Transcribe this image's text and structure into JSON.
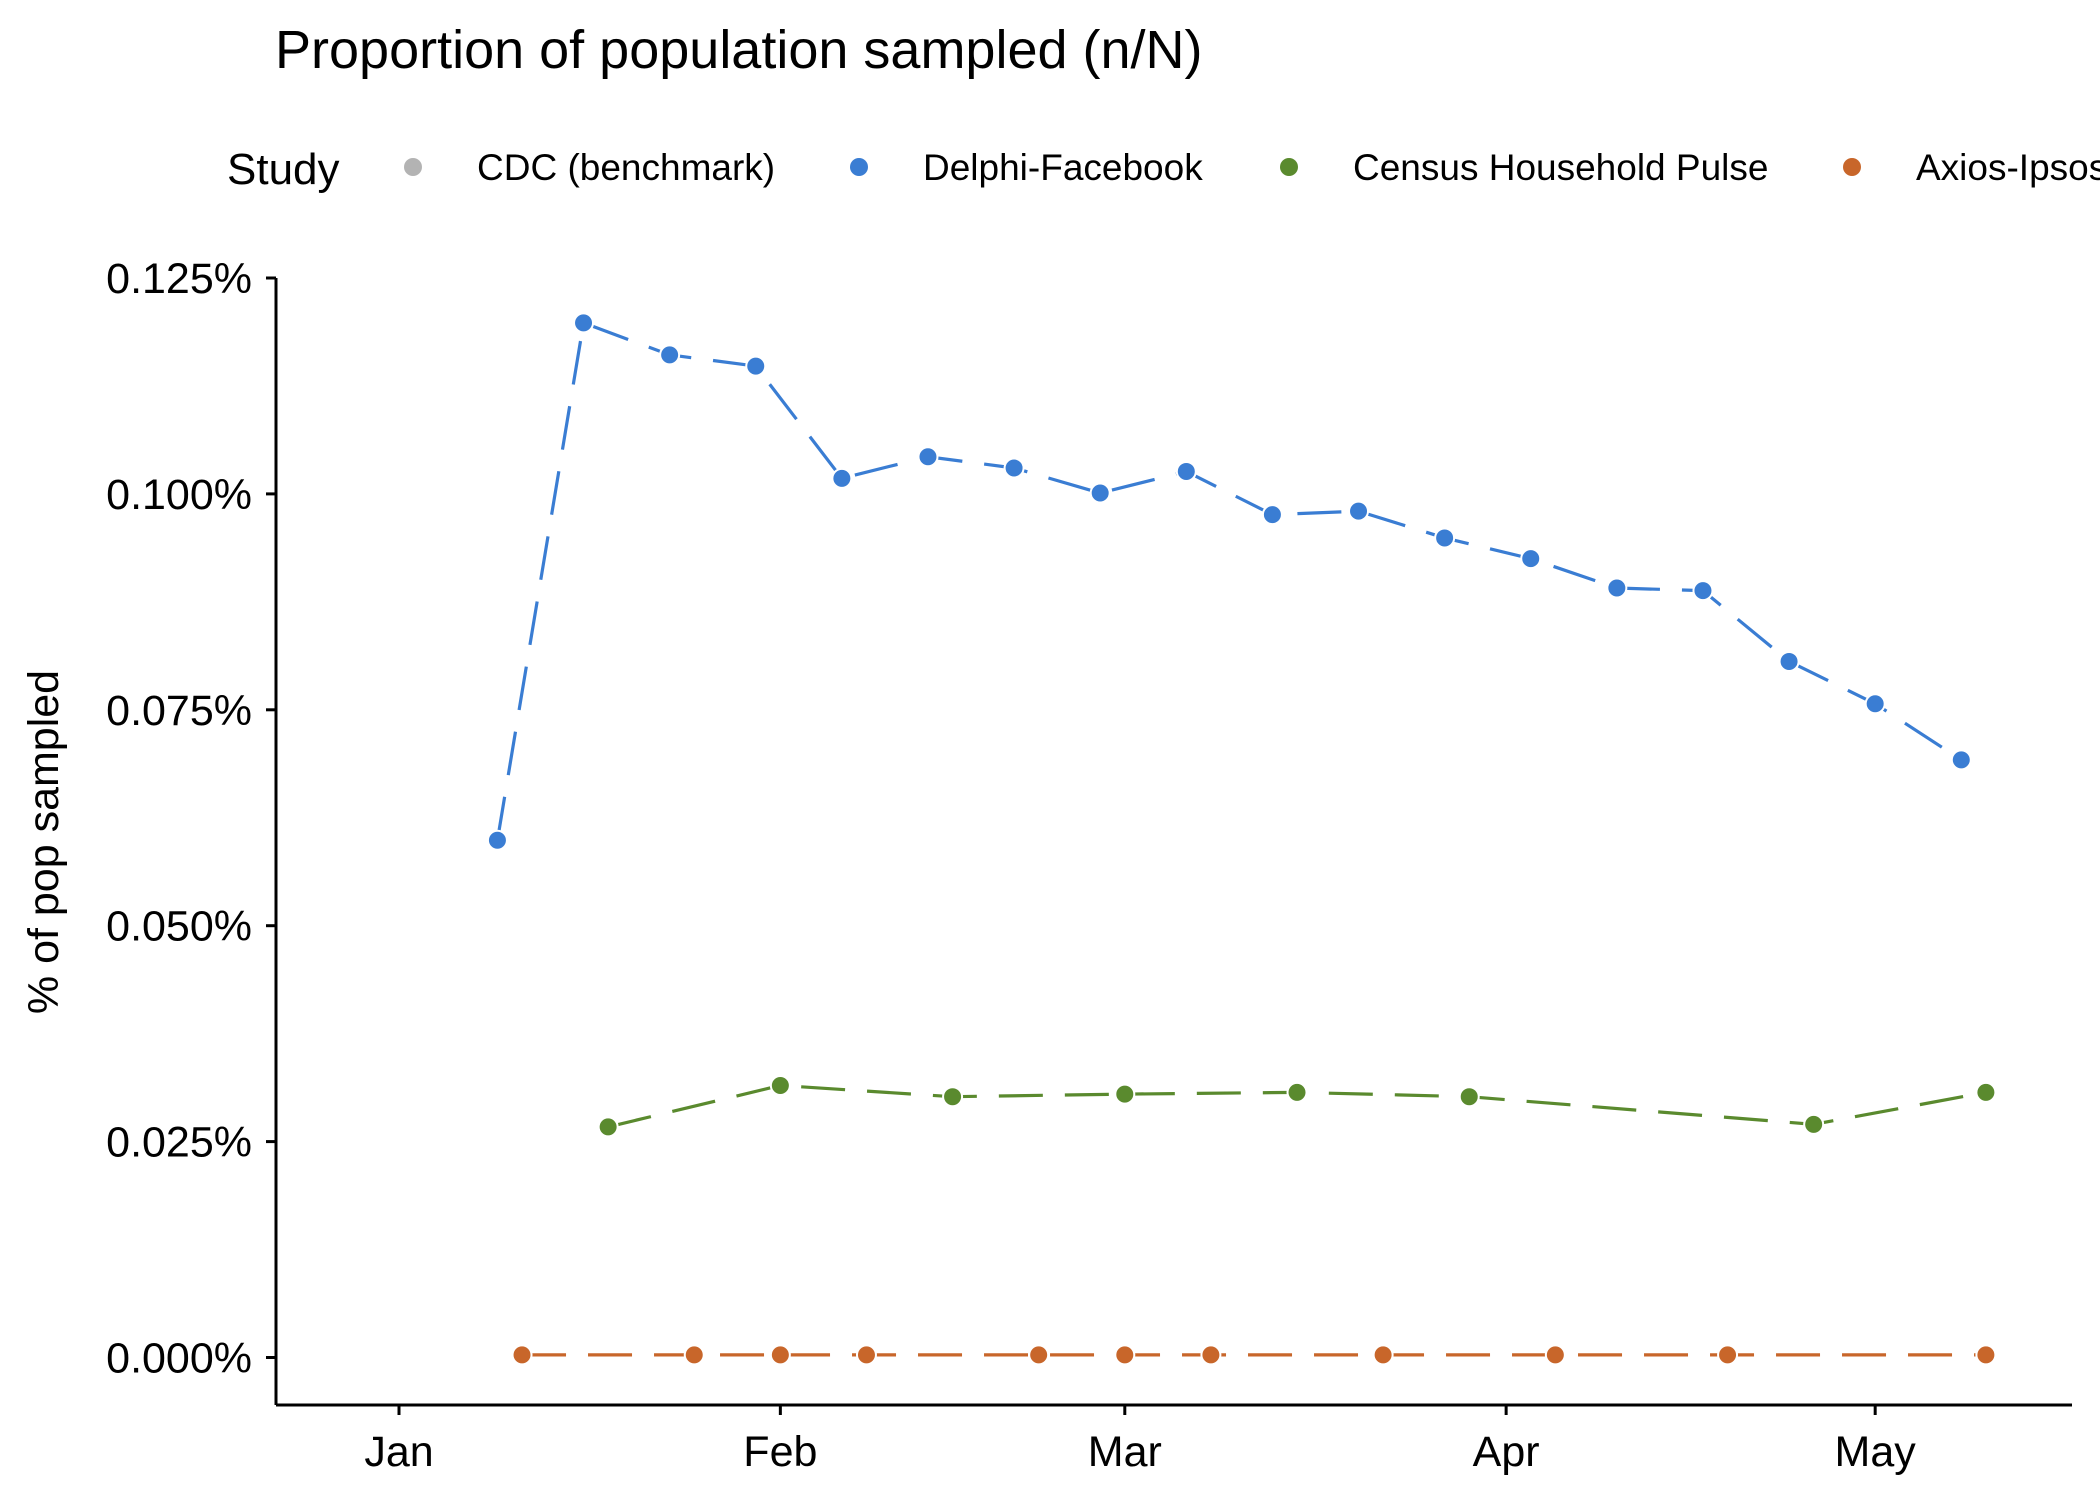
{
  "chart_data": {
    "type": "line",
    "title": "Proportion of population sampled (n/N)",
    "xlabel": "",
    "ylabel": "% of pop sampled",
    "legend": {
      "title": "Study",
      "placement": "top"
    },
    "x_ticks": [
      "Jan",
      "Feb",
      "Mar",
      "Apr",
      "May"
    ],
    "x_tick_dates": [
      "2021-01-01",
      "2021-02-01",
      "2021-03-01",
      "2021-04-01",
      "2021-05-01"
    ],
    "xlim": [
      "2020-12-22",
      "2021-05-17"
    ],
    "y_ticks": [
      "0.000%",
      "0.025%",
      "0.050%",
      "0.075%",
      "0.100%",
      "0.125%"
    ],
    "y_tick_values": [
      0,
      0.025,
      0.05,
      0.075,
      0.1,
      0.125
    ],
    "ylim": [
      -0.0055,
      0.125
    ],
    "grid": false,
    "series": [
      {
        "name": "CDC (benchmark)",
        "color": "#b3b3b3",
        "points": []
      },
      {
        "name": "Delphi-Facebook",
        "color": "#3a7dd3",
        "points": [
          {
            "date": "2021-01-09",
            "value": 0.0599
          },
          {
            "date": "2021-01-16",
            "value": 0.1198
          },
          {
            "date": "2021-01-23",
            "value": 0.1161
          },
          {
            "date": "2021-01-30",
            "value": 0.1148
          },
          {
            "date": "2021-02-06",
            "value": 0.1018
          },
          {
            "date": "2021-02-13",
            "value": 0.1043
          },
          {
            "date": "2021-02-20",
            "value": 0.103
          },
          {
            "date": "2021-02-27",
            "value": 0.1001
          },
          {
            "date": "2021-03-06",
            "value": 0.1026
          },
          {
            "date": "2021-03-13",
            "value": 0.0976
          },
          {
            "date": "2021-03-20",
            "value": 0.098
          },
          {
            "date": "2021-03-27",
            "value": 0.0949
          },
          {
            "date": "2021-04-03",
            "value": 0.0925
          },
          {
            "date": "2021-04-10",
            "value": 0.0891
          },
          {
            "date": "2021-04-17",
            "value": 0.0888
          },
          {
            "date": "2021-04-24",
            "value": 0.0806
          },
          {
            "date": "2021-05-01",
            "value": 0.0757
          },
          {
            "date": "2021-05-08",
            "value": 0.0692
          }
        ]
      },
      {
        "name": "Census Household Pulse",
        "color": "#5a8a2e",
        "points": [
          {
            "date": "2021-01-18",
            "value": 0.0267
          },
          {
            "date": "2021-02-01",
            "value": 0.0315
          },
          {
            "date": "2021-02-15",
            "value": 0.0302
          },
          {
            "date": "2021-03-01",
            "value": 0.0305
          },
          {
            "date": "2021-03-15",
            "value": 0.0307
          },
          {
            "date": "2021-03-29",
            "value": 0.0302
          },
          {
            "date": "2021-04-26",
            "value": 0.027
          },
          {
            "date": "2021-05-10",
            "value": 0.0307
          }
        ]
      },
      {
        "name": "Axios-Ipsos",
        "color": "#c8662a",
        "points": [
          {
            "date": "2021-01-11",
            "value": 0.0003
          },
          {
            "date": "2021-01-25",
            "value": 0.0003
          },
          {
            "date": "2021-02-01",
            "value": 0.0003
          },
          {
            "date": "2021-02-08",
            "value": 0.0003
          },
          {
            "date": "2021-02-22",
            "value": 0.0003
          },
          {
            "date": "2021-03-01",
            "value": 0.0003
          },
          {
            "date": "2021-03-08",
            "value": 0.0003
          },
          {
            "date": "2021-03-22",
            "value": 0.0003
          },
          {
            "date": "2021-04-05",
            "value": 0.0003
          },
          {
            "date": "2021-04-19",
            "value": 0.0003
          },
          {
            "date": "2021-05-10",
            "value": 0.0003
          }
        ]
      }
    ]
  }
}
